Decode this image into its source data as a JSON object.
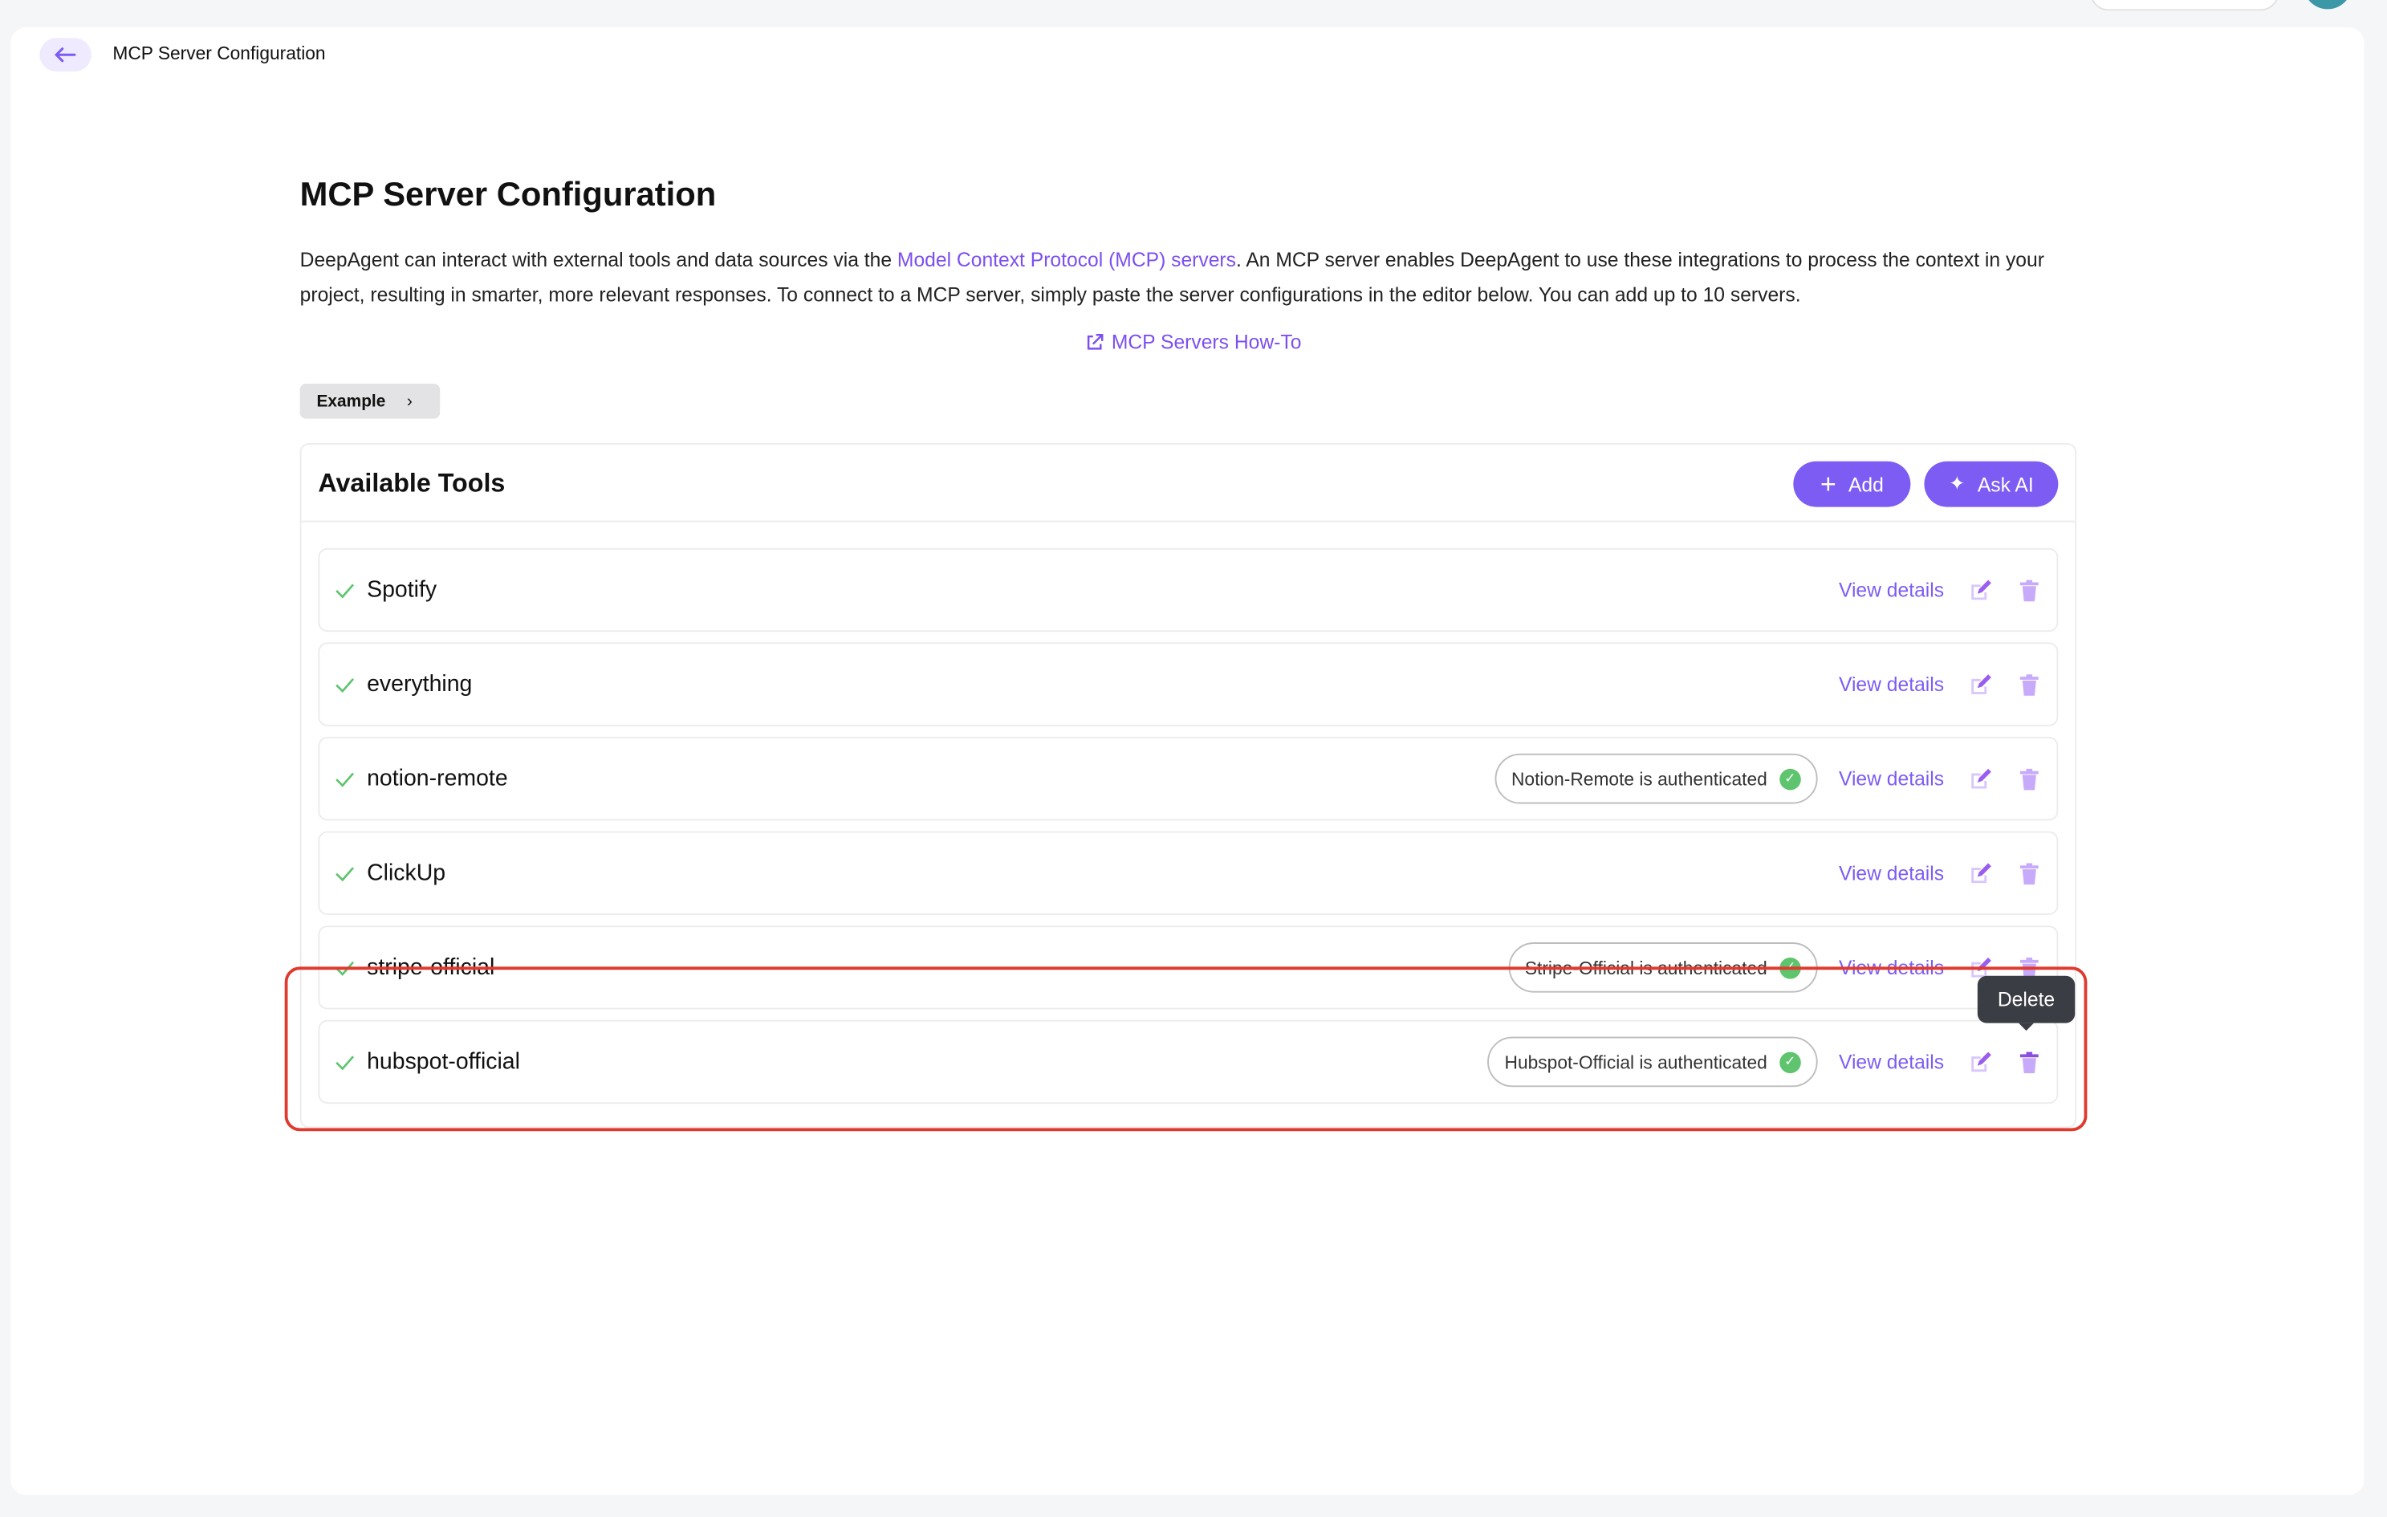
{
  "header": {
    "breadcrumb": "MCP Server Configuration"
  },
  "page": {
    "title": "MCP Server Configuration",
    "desc_before": "DeepAgent can interact with external tools and data sources via the ",
    "desc_link": "Model Context Protocol (MCP) servers",
    "desc_after": ". An MCP server enables DeepAgent to use these integrations to process the context in your project, resulting in smarter, more relevant responses. To connect to a MCP server, simply paste the server configurations in the editor below. You can add up to 10 servers.",
    "howto_link": "MCP Servers How-To",
    "example_label": "Example"
  },
  "tools": {
    "title": "Available Tools",
    "add_label": "Add",
    "ask_ai_label": "Ask AI",
    "view_details_label": "View details",
    "items": [
      {
        "name": "Spotify",
        "badge": null
      },
      {
        "name": "everything",
        "badge": null
      },
      {
        "name": "notion-remote",
        "badge": "Notion-Remote is authenticated"
      },
      {
        "name": "ClickUp",
        "badge": null
      },
      {
        "name": "stripe-official",
        "badge": "Stripe-Official is authenticated"
      },
      {
        "name": "hubspot-official",
        "badge": "Hubspot-Official is authenticated"
      }
    ]
  },
  "tooltip": "Delete",
  "colors": {
    "accent": "#7c5cf3",
    "highlight": "#e0392d",
    "success": "#5ec46d"
  }
}
